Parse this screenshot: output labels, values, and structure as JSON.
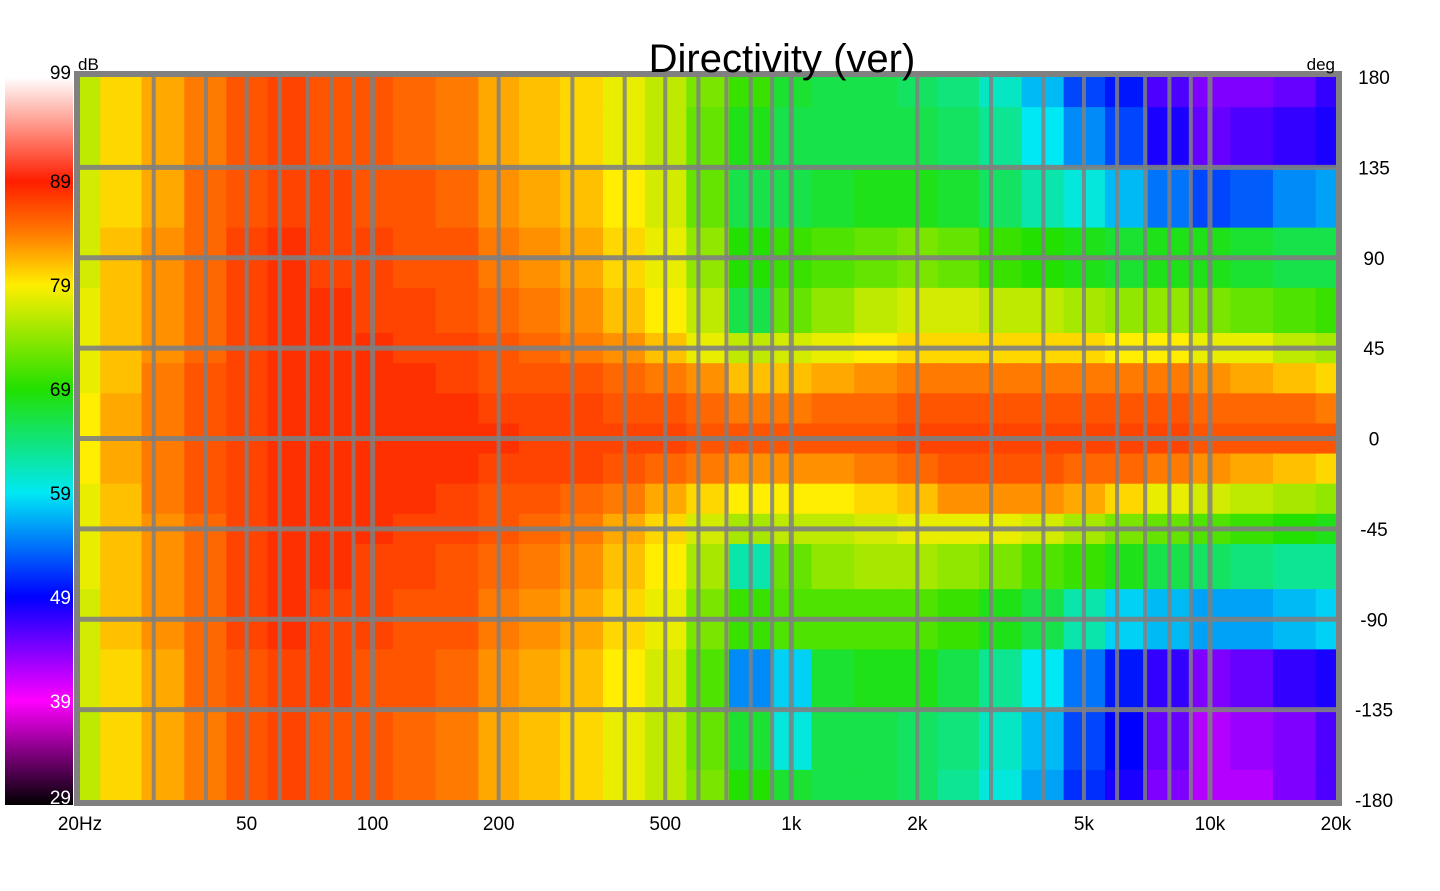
{
  "chart_data": {
    "type": "heatmap",
    "title": "Directivity (ver)",
    "xlabel": "",
    "ylabel": "",
    "x_scale": "log",
    "xlim": [
      20,
      20000
    ],
    "ylim": [
      -180,
      180
    ],
    "x_tick_labels": [
      {
        "value": 20,
        "label": "20Hz"
      },
      {
        "value": 50,
        "label": "50"
      },
      {
        "value": 100,
        "label": "100"
      },
      {
        "value": 200,
        "label": "200"
      },
      {
        "value": 500,
        "label": "500"
      },
      {
        "value": 1000,
        "label": "1k"
      },
      {
        "value": 2000,
        "label": "2k"
      },
      {
        "value": 5000,
        "label": "5k"
      },
      {
        "value": 10000,
        "label": "10k"
      },
      {
        "value": 20000,
        "label": "20k"
      }
    ],
    "y_tick_labels": [
      {
        "value": 180,
        "label": "180"
      },
      {
        "value": 135,
        "label": "135"
      },
      {
        "value": 90,
        "label": "90"
      },
      {
        "value": 45,
        "label": "45"
      },
      {
        "value": 0,
        "label": "0"
      },
      {
        "value": -45,
        "label": "-45"
      },
      {
        "value": -90,
        "label": "-90"
      },
      {
        "value": -135,
        "label": "-135"
      },
      {
        "value": -180,
        "label": "-180"
      }
    ],
    "y_unit": "deg",
    "colorbar": {
      "unit": "dB",
      "range": [
        29,
        99
      ],
      "ticks": [
        {
          "value": 99,
          "label": "99"
        },
        {
          "value": 89,
          "label": "89"
        },
        {
          "value": 79,
          "label": "79"
        },
        {
          "value": 69,
          "label": "69"
        },
        {
          "value": 59,
          "label": "59"
        },
        {
          "value": 49,
          "label": "49"
        },
        {
          "value": 39,
          "label": "39"
        },
        {
          "value": 29,
          "label": "29"
        }
      ],
      "stops": [
        {
          "value": 99,
          "color": "#ffffff"
        },
        {
          "value": 89,
          "color": "#ff1e00"
        },
        {
          "value": 84,
          "color": "#ff7a00"
        },
        {
          "value": 79,
          "color": "#ffee00"
        },
        {
          "value": 69,
          "color": "#22e000"
        },
        {
          "value": 59,
          "color": "#00e8f4"
        },
        {
          "value": 49,
          "color": "#0000ff"
        },
        {
          "value": 39,
          "color": "#ff00ff"
        },
        {
          "value": 29,
          "color": "#000000"
        }
      ]
    },
    "grid": true,
    "frequencies_hz": [
      20,
      25,
      31.5,
      40,
      50,
      63,
      80,
      100,
      125,
      160,
      200,
      250,
      315,
      400,
      500,
      630,
      800,
      1000,
      1250,
      1600,
      2000,
      2500,
      3150,
      4000,
      5000,
      6300,
      8000,
      10000,
      12500,
      16000,
      20000
    ],
    "angles_deg": [
      180,
      150,
      120,
      90,
      60,
      45,
      30,
      15,
      0,
      -15,
      -30,
      -45,
      -60,
      -90,
      -120,
      -150,
      -180
    ],
    "values_db": [
      [
        76,
        80,
        82,
        84,
        86,
        87,
        86,
        86,
        85,
        84,
        82,
        81,
        80,
        78,
        76,
        73,
        70,
        67,
        66,
        66,
        65,
        64,
        61,
        57,
        52,
        50,
        46,
        44,
        44,
        45,
        47
      ],
      [
        76,
        80,
        82,
        84,
        86,
        87,
        86,
        86,
        85,
        84,
        82,
        81,
        80,
        78,
        76,
        72,
        68,
        66,
        66,
        66,
        66,
        65,
        63,
        59,
        55,
        52,
        48,
        45,
        46,
        47,
        48
      ],
      [
        77,
        80,
        82,
        85,
        86,
        87,
        87,
        86,
        86,
        85,
        83,
        82,
        81,
        79,
        77,
        72,
        66,
        66,
        67,
        68,
        68,
        67,
        65,
        62,
        60,
        57,
        54,
        52,
        53,
        55,
        56
      ],
      [
        77,
        81,
        83,
        85,
        87,
        88,
        87,
        87,
        86,
        86,
        84,
        83,
        82,
        80,
        78,
        74,
        69,
        70,
        71,
        72,
        73,
        72,
        70,
        69,
        68,
        67,
        68,
        68,
        67,
        66,
        66
      ],
      [
        78,
        81,
        83,
        85,
        87,
        88,
        88,
        87,
        87,
        86,
        85,
        84,
        83,
        81,
        79,
        76,
        66,
        72,
        74,
        76,
        77,
        77,
        76,
        76,
        75,
        74,
        74,
        73,
        72,
        71,
        70
      ],
      [
        78,
        81,
        83,
        85,
        87,
        88,
        88,
        88,
        87,
        87,
        86,
        85,
        84,
        83,
        81,
        78,
        76,
        77,
        78,
        79,
        80,
        80,
        80,
        80,
        80,
        79,
        79,
        78,
        78,
        76,
        75
      ],
      [
        78,
        81,
        84,
        86,
        87,
        88,
        88,
        88,
        88,
        87,
        86,
        86,
        86,
        85,
        84,
        83,
        81,
        81,
        82,
        83,
        84,
        84,
        84,
        84,
        84,
        84,
        84,
        83,
        82,
        81,
        80
      ],
      [
        79,
        82,
        84,
        86,
        87,
        88,
        88,
        88,
        88,
        88,
        87,
        87,
        87,
        86,
        86,
        85,
        84,
        84,
        85,
        85,
        86,
        86,
        86,
        86,
        86,
        86,
        86,
        85,
        85,
        85,
        84
      ],
      [
        79,
        82,
        84,
        86,
        87,
        88,
        88,
        88,
        88,
        88,
        88,
        87,
        87,
        87,
        87,
        86,
        86,
        86,
        86,
        86,
        87,
        87,
        87,
        87,
        87,
        87,
        87,
        86,
        86,
        86,
        86
      ],
      [
        79,
        82,
        84,
        86,
        87,
        88,
        88,
        88,
        88,
        88,
        87,
        87,
        87,
        86,
        85,
        84,
        83,
        83,
        83,
        84,
        85,
        86,
        86,
        86,
        85,
        85,
        84,
        83,
        82,
        81,
        80
      ],
      [
        78,
        81,
        84,
        86,
        87,
        88,
        88,
        88,
        88,
        87,
        86,
        86,
        85,
        84,
        82,
        80,
        79,
        79,
        79,
        80,
        81,
        83,
        83,
        83,
        82,
        80,
        78,
        77,
        76,
        75,
        74
      ],
      [
        78,
        81,
        83,
        85,
        87,
        88,
        88,
        88,
        87,
        87,
        86,
        85,
        84,
        82,
        80,
        77,
        75,
        76,
        76,
        77,
        78,
        78,
        78,
        77,
        75,
        73,
        72,
        71,
        70,
        69,
        68
      ],
      [
        78,
        81,
        83,
        85,
        87,
        88,
        88,
        87,
        87,
        86,
        85,
        84,
        83,
        81,
        79,
        75,
        62,
        72,
        74,
        75,
        75,
        74,
        73,
        71,
        70,
        68,
        66,
        65,
        64,
        63,
        63
      ],
      [
        77,
        81,
        83,
        85,
        87,
        88,
        87,
        87,
        86,
        86,
        84,
        83,
        82,
        80,
        78,
        73,
        70,
        71,
        71,
        71,
        71,
        70,
        68,
        66,
        62,
        58,
        57,
        56,
        56,
        57,
        58
      ],
      [
        77,
        80,
        82,
        85,
        86,
        87,
        87,
        86,
        86,
        85,
        83,
        82,
        81,
        79,
        77,
        71,
        55,
        58,
        67,
        68,
        68,
        66,
        63,
        59,
        54,
        50,
        47,
        44,
        45,
        47,
        48
      ],
      [
        76,
        80,
        82,
        84,
        86,
        87,
        86,
        86,
        85,
        84,
        82,
        81,
        80,
        78,
        76,
        72,
        67,
        60,
        66,
        66,
        65,
        64,
        61,
        57,
        52,
        49,
        45,
        42,
        43,
        44,
        46
      ],
      [
        76,
        80,
        82,
        84,
        86,
        87,
        86,
        86,
        85,
        84,
        82,
        81,
        80,
        78,
        76,
        73,
        69,
        67,
        66,
        66,
        65,
        63,
        60,
        56,
        51,
        48,
        44,
        42,
        42,
        44,
        46
      ]
    ]
  }
}
